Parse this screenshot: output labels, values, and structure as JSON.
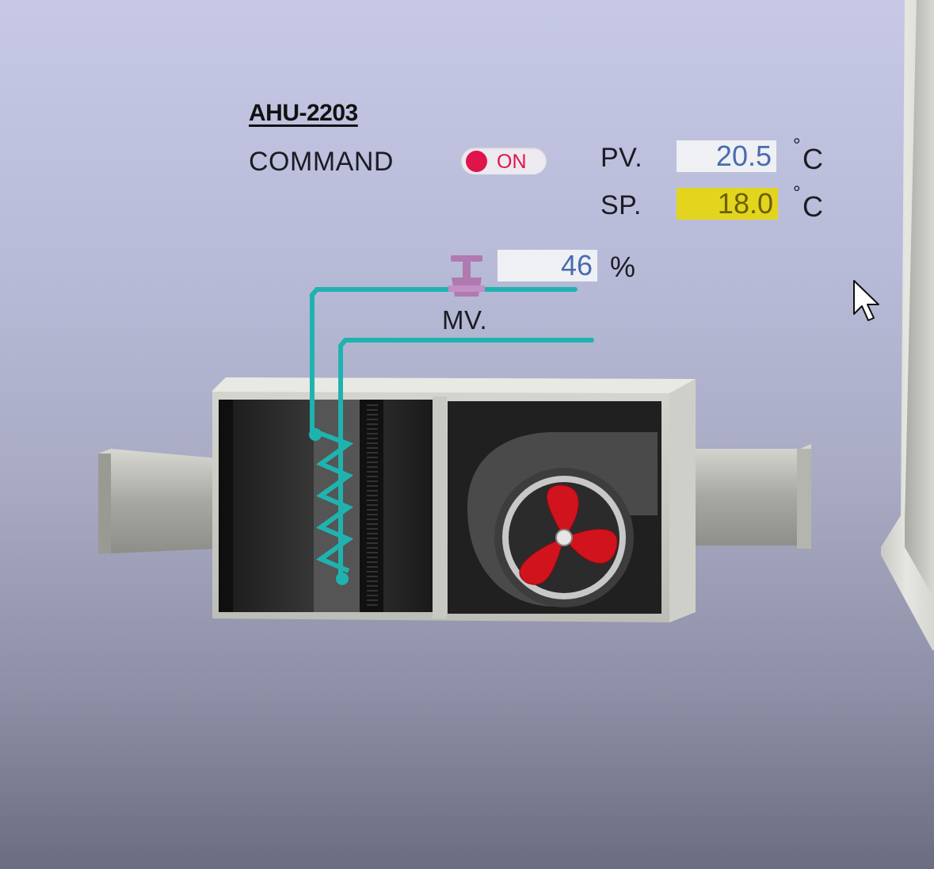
{
  "unit": {
    "name": "AHU-2203",
    "command_label": "COMMAND",
    "command_state": "ON"
  },
  "pv": {
    "label": "PV.",
    "value": "20.5",
    "deg": "°",
    "unit": "C"
  },
  "sp": {
    "label": "SP.",
    "value": "18.0",
    "deg": "°",
    "unit": "C"
  },
  "mv": {
    "label": "MV.",
    "value": "46",
    "unit": "%"
  },
  "icons": {
    "valve": "valve-icon",
    "fan": "fan-icon",
    "coil": "coil-icon",
    "cursor": "cursor-icon"
  },
  "colors": {
    "on_state": "#e0134a",
    "setpoint_bg": "#e3d51e",
    "value_text": "#4a6bb0",
    "pipe": "#1fb3b0",
    "fan_blade": "#d1131d",
    "valve": "#b07ab0"
  }
}
